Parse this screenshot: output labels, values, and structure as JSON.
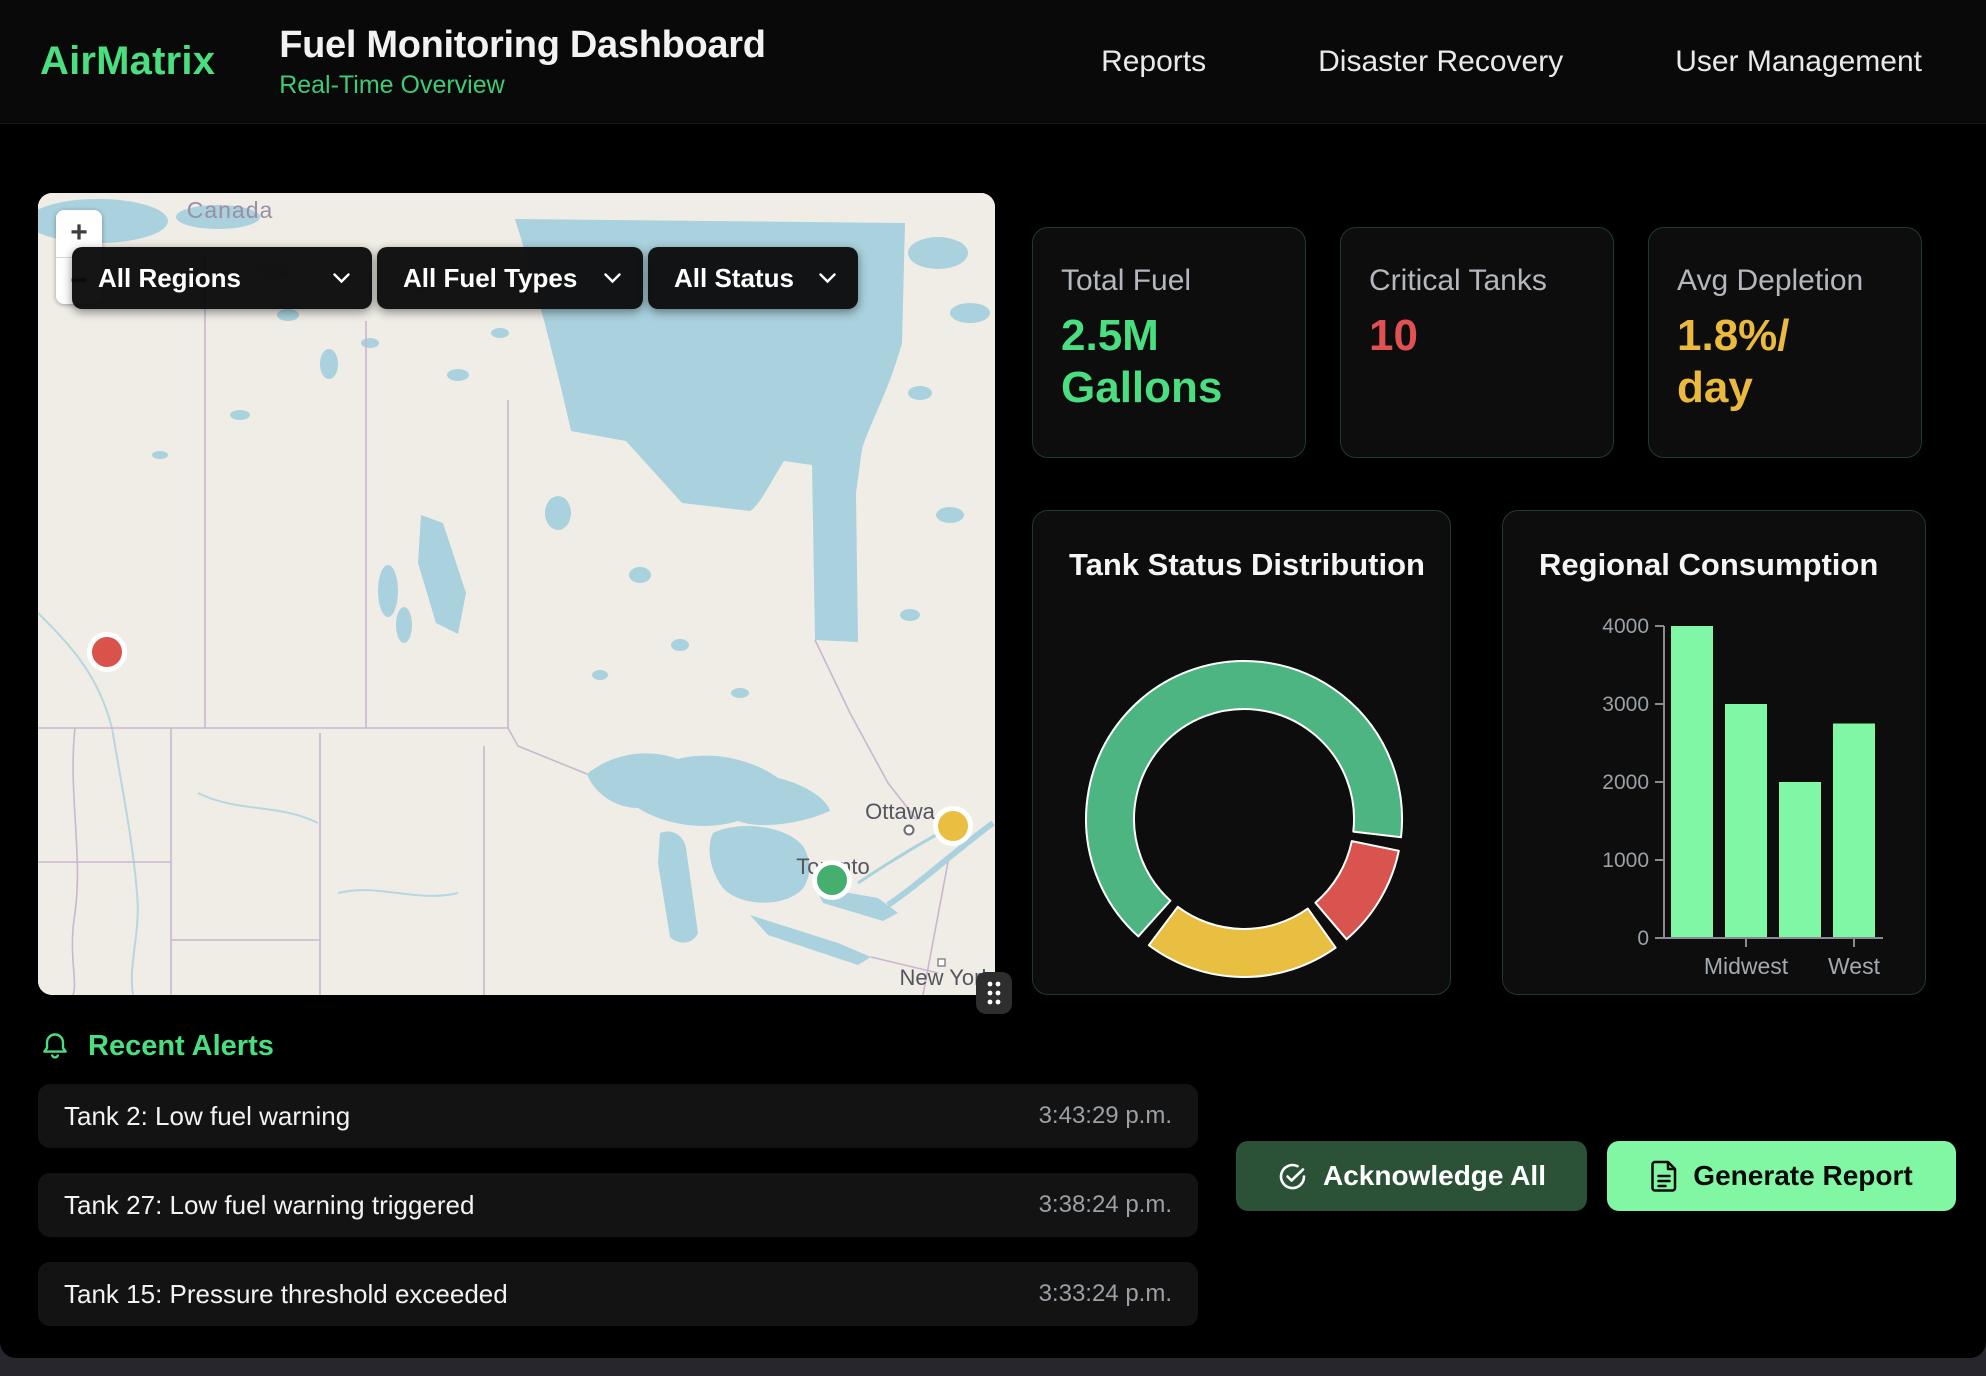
{
  "theme": {
    "accent_green": "#4ade80",
    "bright_green": "#7ff7a4",
    "amber": "#eab93d",
    "red": "#e05252",
    "card_border": "#1f3b2c"
  },
  "header": {
    "brand": "AirMatrix",
    "title": "Fuel Monitoring Dashboard",
    "subtitle": "Real-Time Overview",
    "nav": [
      {
        "label": "Reports"
      },
      {
        "label": "Disaster Recovery"
      },
      {
        "label": "User Management"
      }
    ]
  },
  "map": {
    "zoom_in": "+",
    "zoom_out": "−",
    "filters": [
      {
        "value": "All Regions"
      },
      {
        "value": "All Fuel Types"
      },
      {
        "value": "All Status"
      }
    ],
    "labels": {
      "country": "Canada",
      "ottawa": "Ottawa",
      "toronto": "Toronto",
      "new_york": "New York"
    },
    "markers": [
      {
        "status": "critical",
        "color": "#d9534a",
        "x": 0.072,
        "y": 0.572
      },
      {
        "status": "warning",
        "color": "#eabf41",
        "x": 0.956,
        "y": 0.789
      },
      {
        "status": "normal",
        "color": "#45b06d",
        "x": 0.83,
        "y": 0.857
      }
    ]
  },
  "stats": [
    {
      "label": "Total Fuel",
      "value": "2.5M Gallons",
      "lines": [
        "2.5M",
        "Gallons"
      ],
      "color": "#4ade80"
    },
    {
      "label": "Critical Tanks",
      "value": "10",
      "lines": [
        "10"
      ],
      "color": "#e05252"
    },
    {
      "label": "Avg Depletion",
      "value": "1.8%/day",
      "lines": [
        "1.8%/",
        "day"
      ],
      "color": "#eab93d"
    }
  ],
  "chart_data": [
    {
      "type": "doughnut",
      "title": "Tank Status Distribution",
      "segments": [
        {
          "name": "green",
          "color": "#4db582",
          "value": 68
        },
        {
          "name": "red",
          "color": "#d9534f",
          "value": 11
        },
        {
          "name": "yellow",
          "color": "#e9bf41",
          "value": 21
        }
      ],
      "rotation_deg": -138,
      "gap_deg": 5,
      "inner_radius": 110,
      "outer_radius": 158,
      "legend": "none"
    },
    {
      "type": "bar",
      "title": "Regional Consumption",
      "categories": [
        "",
        "Midwest",
        "",
        "West"
      ],
      "values": [
        4000,
        3000,
        2000,
        2750
      ],
      "bar_color": "#7ff7a4",
      "ylim": [
        0,
        4000
      ],
      "yticks": [
        0,
        1000,
        2000,
        3000,
        4000
      ],
      "grid": false,
      "legend": "none"
    }
  ],
  "alerts": {
    "heading": "Recent Alerts",
    "items": [
      {
        "message": "Tank 2: Low fuel warning",
        "time": "3:43:29 p.m."
      },
      {
        "message": "Tank 27: Low fuel warning triggered",
        "time": "3:38:24 p.m."
      },
      {
        "message": "Tank 15: Pressure threshold exceeded",
        "time": "3:33:24 p.m."
      }
    ]
  },
  "actions": [
    {
      "label": "Acknowledge All"
    },
    {
      "label": "Generate Report"
    }
  ]
}
